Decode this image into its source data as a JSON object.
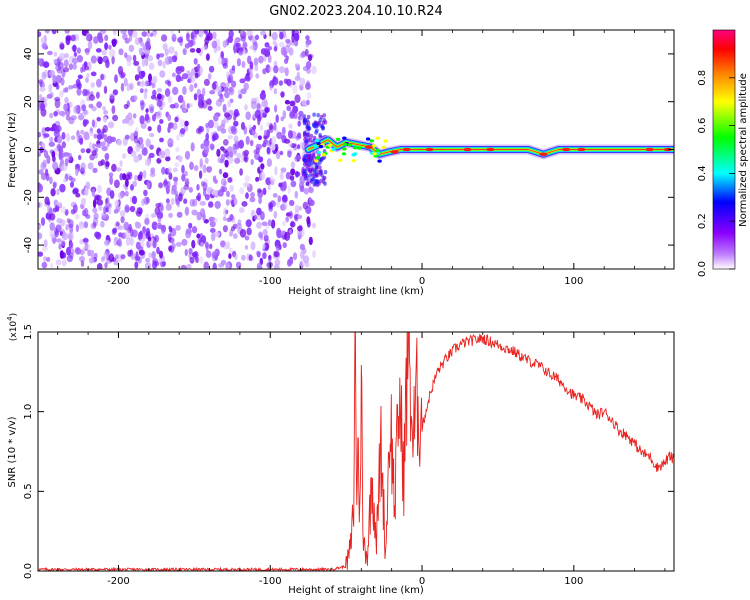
{
  "title": "GN02.2023.204.10.10.R24",
  "chart_data": [
    {
      "type": "heatmap",
      "xlabel": "Height of straight line (km)",
      "ylabel": "Frequency (Hz)",
      "xlim": [
        -253,
        166
      ],
      "ylim": [
        -50,
        50
      ],
      "xticks": [
        -200,
        -100,
        0,
        100
      ],
      "yticks": [
        -40,
        -20,
        0,
        20,
        40
      ],
      "xtick_labels": [
        "-200",
        "-100",
        "0",
        "100"
      ],
      "ytick_labels": [
        "-40",
        "-20",
        "0",
        "20",
        "40"
      ],
      "noise_region_x": [
        -253,
        -75
      ],
      "signal_track": [
        {
          "x": -75,
          "f": 0
        },
        {
          "x": -68,
          "f": 2
        },
        {
          "x": -62,
          "f": 4
        },
        {
          "x": -56,
          "f": 1
        },
        {
          "x": -50,
          "f": 3
        },
        {
          "x": -42,
          "f": 2
        },
        {
          "x": -34,
          "f": 1
        },
        {
          "x": -28,
          "f": -2
        },
        {
          "x": -22,
          "f": -1
        },
        {
          "x": -14,
          "f": 0
        },
        {
          "x": 0,
          "f": 0
        },
        {
          "x": 40,
          "f": 0
        },
        {
          "x": 70,
          "f": 0
        },
        {
          "x": 80,
          "f": -2
        },
        {
          "x": 90,
          "f": 0
        },
        {
          "x": 166,
          "f": 0
        }
      ],
      "colorbar": {
        "label": "Normalized spectral amplitude",
        "range": [
          0,
          1
        ],
        "ticks": [
          0,
          0.2,
          0.4,
          0.6,
          0.8
        ],
        "tick_labels": [
          "0.0",
          "0.2",
          "0.4",
          "0.6",
          "0.8"
        ],
        "colors": [
          "#ffffff",
          "#8a00ff",
          "#0000ff",
          "#00ffff",
          "#00ff00",
          "#ffff00",
          "#ff8000",
          "#ff0000",
          "#ff0080"
        ]
      },
      "grid": false
    },
    {
      "type": "line",
      "xlabel": "Height of straight line (km)",
      "ylabel": "SNR (10 * v/v)",
      "y_multiplier_label": "(x10",
      "y_multiplier_exp": "4",
      "y_multiplier_close": ")",
      "xlim": [
        -253,
        166
      ],
      "ylim": [
        0,
        1.5
      ],
      "xticks": [
        -200,
        -100,
        0,
        100
      ],
      "yticks": [
        0,
        0.5,
        1.0,
        1.5
      ],
      "xtick_labels": [
        "-200",
        "-100",
        "0",
        "100"
      ],
      "ytick_labels": [
        "0.0",
        "0.5",
        "1.0",
        "1.5"
      ],
      "series": [
        {
          "color": "#e8221e",
          "points": [
            [
              -253,
              0.01
            ],
            [
              -150,
              0.01
            ],
            [
              -60,
              0.01
            ],
            [
              -50,
              0.03
            ],
            [
              -47,
              0.15
            ],
            [
              -45,
              0.4
            ],
            [
              -44,
              1.5
            ],
            [
              -43,
              0.5
            ],
            [
              -42,
              0.8
            ],
            [
              -41,
              0.3
            ],
            [
              -40,
              1.4
            ],
            [
              -39,
              0.2
            ],
            [
              -36,
              0.1
            ],
            [
              -33,
              0.6
            ],
            [
              -30,
              0.2
            ],
            [
              -27,
              0.8
            ],
            [
              -24,
              0.1
            ],
            [
              -21,
              1.0
            ],
            [
              -18,
              0.4
            ],
            [
              -15,
              1.1
            ],
            [
              -12,
              0.6
            ],
            [
              -9,
              1.5
            ],
            [
              -6,
              0.8
            ],
            [
              -3,
              1.1
            ],
            [
              0,
              0.9
            ],
            [
              5,
              1.1
            ],
            [
              10,
              1.25
            ],
            [
              15,
              1.32
            ],
            [
              20,
              1.38
            ],
            [
              25,
              1.42
            ],
            [
              30,
              1.44
            ],
            [
              35,
              1.45
            ],
            [
              40,
              1.46
            ],
            [
              45,
              1.44
            ],
            [
              50,
              1.42
            ],
            [
              55,
              1.4
            ],
            [
              60,
              1.38
            ],
            [
              65,
              1.35
            ],
            [
              70,
              1.32
            ],
            [
              75,
              1.3
            ],
            [
              80,
              1.27
            ],
            [
              85,
              1.23
            ],
            [
              90,
              1.2
            ],
            [
              95,
              1.15
            ],
            [
              100,
              1.1
            ],
            [
              105,
              1.08
            ],
            [
              110,
              1.04
            ],
            [
              115,
              0.98
            ],
            [
              120,
              1.0
            ],
            [
              125,
              0.95
            ],
            [
              130,
              0.88
            ],
            [
              135,
              0.85
            ],
            [
              140,
              0.8
            ],
            [
              145,
              0.74
            ],
            [
              150,
              0.72
            ],
            [
              155,
              0.65
            ],
            [
              160,
              0.68
            ],
            [
              163,
              0.72
            ],
            [
              166,
              0.7
            ]
          ]
        }
      ],
      "grid": false
    }
  ]
}
